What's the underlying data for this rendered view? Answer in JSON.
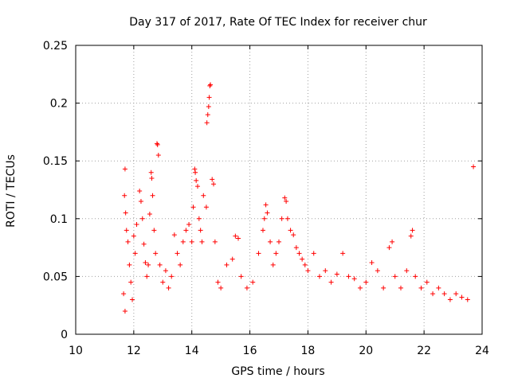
{
  "chart_data": {
    "type": "scatter",
    "title": "Day 317 of 2017, Rate Of TEC Index for receiver chur",
    "xlabel": "GPS time / hours",
    "ylabel": "ROTI / TECUs",
    "xlim": [
      10,
      24
    ],
    "ylim": [
      0,
      0.25
    ],
    "x_ticks": [
      10,
      12,
      14,
      16,
      18,
      20,
      22,
      24
    ],
    "x_tick_labels": [
      "10",
      "12",
      "14",
      "16",
      "18",
      "20",
      "22",
      "24"
    ],
    "y_ticks": [
      0,
      0.05,
      0.1,
      0.15,
      0.2,
      0.25
    ],
    "y_tick_labels": [
      "0",
      "0.05",
      "0.1",
      "0.15",
      "0.2",
      "0.25"
    ],
    "grid": true,
    "marker": "+",
    "series": [
      {
        "color": "#ff0000",
        "points": [
          [
            11.7,
            0.143
          ],
          [
            11.68,
            0.12
          ],
          [
            11.72,
            0.105
          ],
          [
            11.75,
            0.09
          ],
          [
            11.8,
            0.08
          ],
          [
            11.85,
            0.06
          ],
          [
            11.9,
            0.045
          ],
          [
            11.95,
            0.03
          ],
          [
            11.65,
            0.035
          ],
          [
            11.7,
            0.02
          ],
          [
            12.0,
            0.085
          ],
          [
            12.05,
            0.07
          ],
          [
            12.1,
            0.095
          ],
          [
            12.2,
            0.124
          ],
          [
            12.25,
            0.115
          ],
          [
            12.3,
            0.1
          ],
          [
            12.35,
            0.078
          ],
          [
            12.4,
            0.062
          ],
          [
            12.45,
            0.05
          ],
          [
            12.5,
            0.06
          ],
          [
            12.55,
            0.104
          ],
          [
            12.6,
            0.14
          ],
          [
            12.62,
            0.135
          ],
          [
            12.65,
            0.12
          ],
          [
            12.7,
            0.09
          ],
          [
            12.75,
            0.07
          ],
          [
            12.8,
            0.165
          ],
          [
            12.82,
            0.164
          ],
          [
            12.85,
            0.155
          ],
          [
            12.9,
            0.06
          ],
          [
            13.0,
            0.045
          ],
          [
            13.1,
            0.055
          ],
          [
            13.2,
            0.04
          ],
          [
            13.3,
            0.05
          ],
          [
            13.4,
            0.086
          ],
          [
            13.5,
            0.07
          ],
          [
            13.6,
            0.06
          ],
          [
            13.7,
            0.08
          ],
          [
            13.8,
            0.09
          ],
          [
            13.9,
            0.095
          ],
          [
            14.0,
            0.08
          ],
          [
            14.05,
            0.11
          ],
          [
            14.1,
            0.143
          ],
          [
            14.12,
            0.14
          ],
          [
            14.15,
            0.133
          ],
          [
            14.2,
            0.128
          ],
          [
            14.25,
            0.1
          ],
          [
            14.3,
            0.09
          ],
          [
            14.35,
            0.08
          ],
          [
            14.4,
            0.12
          ],
          [
            14.5,
            0.11
          ],
          [
            14.52,
            0.183
          ],
          [
            14.55,
            0.19
          ],
          [
            14.58,
            0.197
          ],
          [
            14.6,
            0.205
          ],
          [
            14.62,
            0.215
          ],
          [
            14.64,
            0.216
          ],
          [
            14.7,
            0.134
          ],
          [
            14.75,
            0.13
          ],
          [
            14.8,
            0.08
          ],
          [
            14.9,
            0.045
          ],
          [
            15.0,
            0.04
          ],
          [
            15.2,
            0.06
          ],
          [
            15.4,
            0.065
          ],
          [
            15.5,
            0.085
          ],
          [
            15.6,
            0.083
          ],
          [
            15.7,
            0.05
          ],
          [
            15.9,
            0.04
          ],
          [
            16.1,
            0.045
          ],
          [
            16.3,
            0.07
          ],
          [
            16.45,
            0.09
          ],
          [
            16.5,
            0.1
          ],
          [
            16.55,
            0.112
          ],
          [
            16.6,
            0.105
          ],
          [
            16.7,
            0.08
          ],
          [
            16.8,
            0.06
          ],
          [
            16.9,
            0.07
          ],
          [
            17.0,
            0.08
          ],
          [
            17.1,
            0.1
          ],
          [
            17.2,
            0.118
          ],
          [
            17.25,
            0.115
          ],
          [
            17.3,
            0.1
          ],
          [
            17.4,
            0.09
          ],
          [
            17.5,
            0.086
          ],
          [
            17.6,
            0.075
          ],
          [
            17.7,
            0.07
          ],
          [
            17.8,
            0.065
          ],
          [
            17.9,
            0.06
          ],
          [
            18.0,
            0.055
          ],
          [
            18.2,
            0.07
          ],
          [
            18.4,
            0.05
          ],
          [
            18.6,
            0.055
          ],
          [
            18.8,
            0.045
          ],
          [
            19.0,
            0.052
          ],
          [
            19.2,
            0.07
          ],
          [
            19.4,
            0.05
          ],
          [
            19.6,
            0.048
          ],
          [
            19.8,
            0.04
          ],
          [
            20.0,
            0.045
          ],
          [
            20.2,
            0.062
          ],
          [
            20.4,
            0.055
          ],
          [
            20.6,
            0.04
          ],
          [
            20.8,
            0.075
          ],
          [
            20.9,
            0.08
          ],
          [
            21.0,
            0.05
          ],
          [
            21.2,
            0.04
          ],
          [
            21.4,
            0.055
          ],
          [
            21.55,
            0.085
          ],
          [
            21.6,
            0.09
          ],
          [
            21.7,
            0.05
          ],
          [
            21.9,
            0.04
          ],
          [
            22.1,
            0.045
          ],
          [
            22.3,
            0.035
          ],
          [
            22.5,
            0.04
          ],
          [
            22.7,
            0.035
          ],
          [
            22.9,
            0.03
          ],
          [
            23.1,
            0.035
          ],
          [
            23.3,
            0.032
          ],
          [
            23.5,
            0.03
          ],
          [
            23.7,
            0.145
          ]
        ]
      }
    ]
  }
}
